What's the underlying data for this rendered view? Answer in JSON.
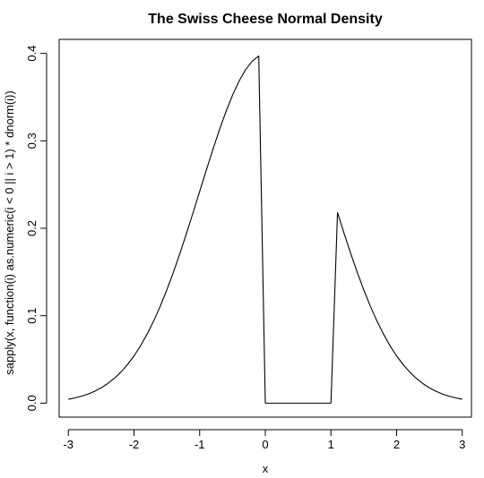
{
  "chart_data": {
    "type": "line",
    "title": "The Swiss Cheese Normal Density",
    "xlabel": "x",
    "ylabel": "sapply(x, function(i) as.numeric(i < 0 || i > 1) * dnorm(i))",
    "xlim": [
      -3,
      3
    ],
    "ylim": [
      0,
      0.4
    ],
    "xticks": [
      "-3",
      "-2",
      "-1",
      "0",
      "1",
      "2",
      "3"
    ],
    "yticks": [
      "0.0",
      "0.1",
      "0.2",
      "0.3",
      "0.4"
    ],
    "grid": false,
    "line_color": "#000000",
    "series": [
      {
        "x": [
          -3.0,
          -2.9,
          -2.8,
          -2.7,
          -2.6,
          -2.5,
          -2.4,
          -2.3,
          -2.2,
          -2.1,
          -2.0,
          -1.9,
          -1.8,
          -1.7,
          -1.6,
          -1.5,
          -1.4,
          -1.3,
          -1.2,
          -1.1,
          -1.0,
          -0.9,
          -0.8,
          -0.7,
          -0.6,
          -0.5,
          -0.4,
          -0.3,
          -0.2,
          -0.1,
          0.0,
          0.1,
          0.2,
          0.3,
          0.4,
          0.5,
          0.6,
          0.7,
          0.8,
          0.9,
          1.0,
          1.1,
          1.2,
          1.3,
          1.4,
          1.5,
          1.6,
          1.7,
          1.8,
          1.9,
          2.0,
          2.1,
          2.2,
          2.3,
          2.4,
          2.5,
          2.6,
          2.7,
          2.8,
          2.9,
          3.0
        ],
        "y": [
          0.0044,
          0.006,
          0.0079,
          0.0104,
          0.0136,
          0.0175,
          0.0224,
          0.0283,
          0.0355,
          0.044,
          0.054,
          0.0656,
          0.079,
          0.094,
          0.1109,
          0.1295,
          0.1497,
          0.1714,
          0.1942,
          0.2179,
          0.242,
          0.2661,
          0.2897,
          0.3123,
          0.3332,
          0.3521,
          0.3683,
          0.3814,
          0.391,
          0.397,
          0.0,
          0.0,
          0.0,
          0.0,
          0.0,
          0.0,
          0.0,
          0.0,
          0.0,
          0.0,
          0.0,
          0.2179,
          0.1942,
          0.1714,
          0.1497,
          0.1295,
          0.1109,
          0.094,
          0.079,
          0.0656,
          0.054,
          0.044,
          0.0355,
          0.0283,
          0.0224,
          0.0175,
          0.0136,
          0.0104,
          0.0079,
          0.006,
          0.0044
        ]
      }
    ]
  }
}
